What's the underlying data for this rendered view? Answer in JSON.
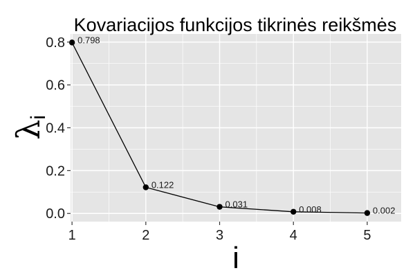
{
  "chart_data": {
    "type": "line",
    "title": "Kovariacijos funkcijos tikrinės reikšmės",
    "xlabel": "i",
    "ylabel": "λ",
    "ylabel_subscript": "i",
    "x": [
      1,
      2,
      3,
      4,
      5
    ],
    "values": [
      0.798,
      0.122,
      0.031,
      0.008,
      0.002
    ],
    "data_labels": [
      "0.798",
      "0.122",
      "0.031",
      "0.008",
      "0.002"
    ],
    "x_ticks": [
      1,
      2,
      3,
      4,
      5
    ],
    "y_ticks": [
      0.0,
      0.2,
      0.4,
      0.6,
      0.8
    ],
    "y_tick_labels": [
      "0.0",
      "0.2",
      "0.4",
      "0.6",
      "0.8"
    ],
    "xlim": [
      0.98,
      5.46
    ],
    "ylim": [
      -0.038,
      0.838
    ],
    "grid": true,
    "colors": {
      "panel": "#e5e5e5",
      "grid": "#ffffff",
      "line": "#000000",
      "points": "#000000"
    }
  }
}
